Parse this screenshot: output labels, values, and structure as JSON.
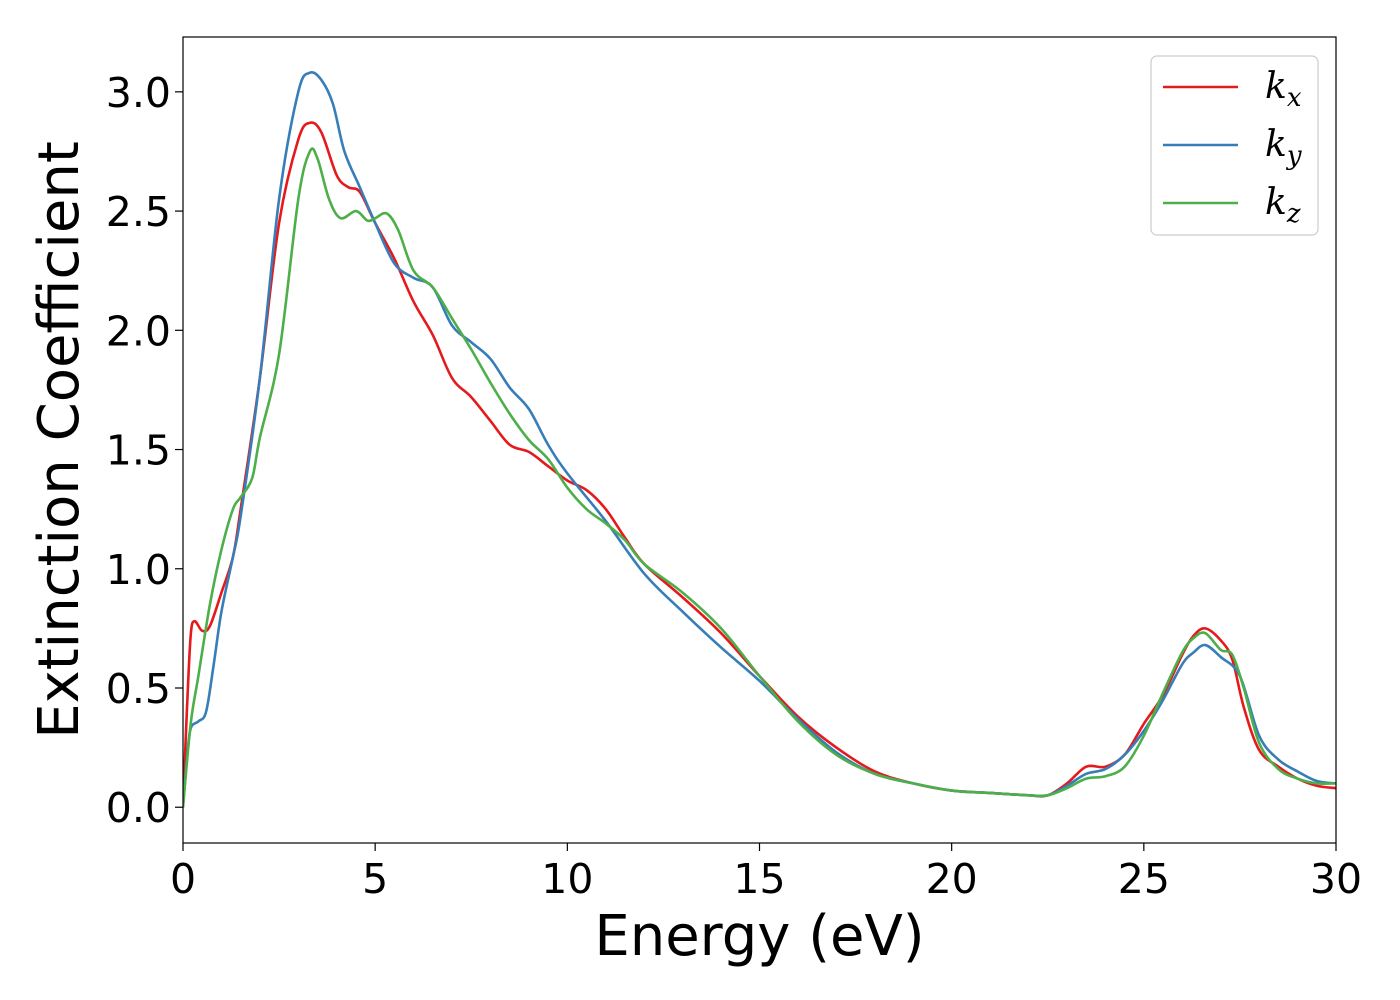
{
  "chart_data": {
    "type": "line",
    "title": "",
    "xlabel": "Energy (eV)",
    "ylabel": "Extinction Coefficient",
    "xlim": [
      0,
      30
    ],
    "ylim": [
      -0.15,
      3.23
    ],
    "xticks": [
      0,
      5,
      10,
      15,
      20,
      25,
      30
    ],
    "xtick_labels": [
      "0",
      "5",
      "10",
      "15",
      "20",
      "25",
      "30"
    ],
    "yticks": [
      0.0,
      0.5,
      1.0,
      1.5,
      2.0,
      2.5,
      3.0
    ],
    "ytick_labels": [
      "0.0",
      "0.5",
      "1.0",
      "1.5",
      "2.0",
      "2.5",
      "3.0"
    ],
    "grid": false,
    "legend_position": "top-right",
    "series": [
      {
        "name": "k",
        "subscript": "x",
        "color": "#e41a1c",
        "x": [
          0,
          0.1,
          0.2,
          0.3,
          0.5,
          0.7,
          1.0,
          1.3,
          1.5,
          2.0,
          2.5,
          3.0,
          3.3,
          3.6,
          4.0,
          4.3,
          4.6,
          5.0,
          5.5,
          6.0,
          6.5,
          7.0,
          7.5,
          8.0,
          8.5,
          9.0,
          9.5,
          10.0,
          10.5,
          11.0,
          11.5,
          12.0,
          13.0,
          14.0,
          15.0,
          16.0,
          17.0,
          18.0,
          19.0,
          20.0,
          21.0,
          22.0,
          22.5,
          23.0,
          23.5,
          24.0,
          24.5,
          25.0,
          25.5,
          26.0,
          26.3,
          26.6,
          27.0,
          27.3,
          27.6,
          28.0,
          28.5,
          29.0,
          29.5,
          30.0
        ],
        "y": [
          0.0,
          0.4,
          0.72,
          0.78,
          0.74,
          0.76,
          0.9,
          1.05,
          1.25,
          1.8,
          2.45,
          2.8,
          2.87,
          2.83,
          2.65,
          2.6,
          2.58,
          2.45,
          2.3,
          2.12,
          1.98,
          1.8,
          1.72,
          1.62,
          1.52,
          1.49,
          1.43,
          1.37,
          1.33,
          1.25,
          1.13,
          1.02,
          0.88,
          0.73,
          0.55,
          0.38,
          0.25,
          0.15,
          0.1,
          0.07,
          0.06,
          0.05,
          0.05,
          0.1,
          0.17,
          0.17,
          0.22,
          0.35,
          0.47,
          0.64,
          0.72,
          0.75,
          0.7,
          0.62,
          0.42,
          0.24,
          0.17,
          0.12,
          0.09,
          0.08
        ]
      },
      {
        "name": "k",
        "subscript": "y",
        "color": "#377eb8",
        "x": [
          0,
          0.1,
          0.2,
          0.4,
          0.6,
          0.8,
          1.0,
          1.3,
          1.5,
          2.0,
          2.5,
          3.0,
          3.3,
          3.6,
          3.9,
          4.2,
          4.6,
          5.0,
          5.5,
          6.0,
          6.5,
          7.0,
          7.5,
          8.0,
          8.5,
          9.0,
          9.5,
          10.0,
          11.0,
          12.0,
          13.0,
          14.0,
          15.0,
          16.0,
          17.0,
          18.0,
          19.0,
          20.0,
          21.0,
          22.0,
          22.5,
          23.0,
          23.5,
          24.0,
          24.5,
          25.0,
          25.5,
          26.0,
          26.3,
          26.6,
          27.0,
          27.5,
          28.0,
          28.5,
          29.0,
          29.5,
          30.0
        ],
        "y": [
          0.0,
          0.2,
          0.33,
          0.36,
          0.4,
          0.6,
          0.82,
          1.05,
          1.22,
          1.8,
          2.55,
          3.0,
          3.08,
          3.05,
          2.95,
          2.75,
          2.6,
          2.45,
          2.28,
          2.22,
          2.18,
          2.02,
          1.95,
          1.88,
          1.76,
          1.67,
          1.52,
          1.4,
          1.2,
          0.98,
          0.82,
          0.67,
          0.53,
          0.37,
          0.23,
          0.14,
          0.1,
          0.07,
          0.06,
          0.05,
          0.05,
          0.09,
          0.14,
          0.16,
          0.22,
          0.32,
          0.45,
          0.6,
          0.65,
          0.68,
          0.63,
          0.55,
          0.3,
          0.2,
          0.15,
          0.11,
          0.1
        ]
      },
      {
        "name": "k",
        "subscript": "z",
        "color": "#4daf4a",
        "x": [
          0,
          0.2,
          0.4,
          0.7,
          1.0,
          1.3,
          1.5,
          1.8,
          2.0,
          2.5,
          3.0,
          3.3,
          3.5,
          3.8,
          4.1,
          4.5,
          4.8,
          5.0,
          5.3,
          5.6,
          6.0,
          6.5,
          7.0,
          7.5,
          8.0,
          8.5,
          9.0,
          9.5,
          10.0,
          10.5,
          11.0,
          11.5,
          12.0,
          13.0,
          14.0,
          15.0,
          16.0,
          17.0,
          18.0,
          19.0,
          20.0,
          21.0,
          22.0,
          22.5,
          23.0,
          23.5,
          24.0,
          24.5,
          25.0,
          25.5,
          26.0,
          26.3,
          26.6,
          27.0,
          27.3,
          27.6,
          28.0,
          28.5,
          29.0,
          29.5,
          30.0
        ],
        "y": [
          0.0,
          0.35,
          0.55,
          0.85,
          1.08,
          1.25,
          1.3,
          1.38,
          1.55,
          1.9,
          2.55,
          2.75,
          2.72,
          2.55,
          2.47,
          2.5,
          2.46,
          2.47,
          2.49,
          2.42,
          2.25,
          2.18,
          2.05,
          1.92,
          1.78,
          1.65,
          1.54,
          1.46,
          1.34,
          1.25,
          1.19,
          1.12,
          1.02,
          0.9,
          0.75,
          0.55,
          0.36,
          0.22,
          0.14,
          0.1,
          0.07,
          0.06,
          0.05,
          0.05,
          0.08,
          0.12,
          0.13,
          0.17,
          0.3,
          0.48,
          0.65,
          0.71,
          0.73,
          0.66,
          0.64,
          0.5,
          0.27,
          0.16,
          0.12,
          0.1,
          0.1
        ]
      }
    ]
  }
}
